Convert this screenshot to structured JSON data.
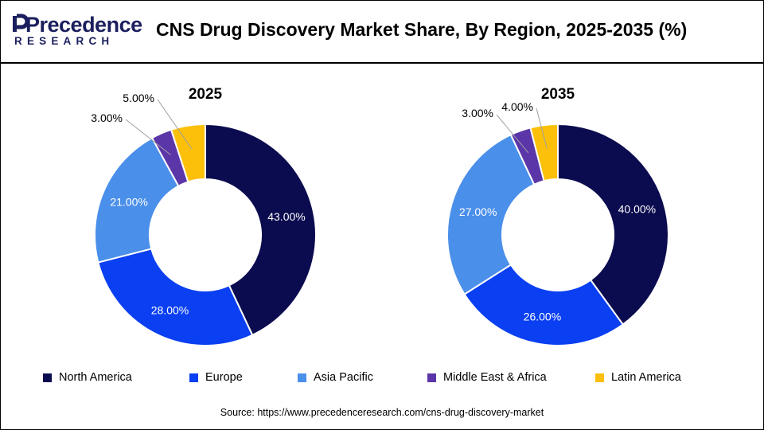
{
  "header": {
    "logo_main": "Precedence",
    "logo_sub": "RESEARCH",
    "title": "CNS Drug Discovery Market Share, By Region, 2025-2035 (%)"
  },
  "source": "Source: https://www.precedenceresearch.com/cns-drug-discovery-market",
  "colors": {
    "North America": "#0b0b4f",
    "Europe": "#0a3ff2",
    "Asia Pacific": "#4a8fea",
    "Middle East & Africa": "#5b36a8",
    "Latin America": "#fcc00b"
  },
  "chart_data": [
    {
      "type": "pie",
      "title": "2025",
      "categories": [
        "North America",
        "Europe",
        "Asia Pacific",
        "Middle East & Africa",
        "Latin America"
      ],
      "values": [
        43.0,
        28.0,
        21.0,
        3.0,
        5.0
      ],
      "labels": [
        "43.00%",
        "28.00%",
        "21.00%",
        "3.00%",
        "5.00%"
      ],
      "donut": true,
      "legend": "bottom"
    },
    {
      "type": "pie",
      "title": "2035",
      "categories": [
        "North America",
        "Europe",
        "Asia Pacific",
        "Middle East & Africa",
        "Latin America"
      ],
      "values": [
        40.0,
        26.0,
        27.0,
        3.0,
        4.0
      ],
      "labels": [
        "40.00%",
        "26.00%",
        "27.00%",
        "3.00%",
        "4.00%"
      ],
      "donut": true,
      "legend": "bottom"
    }
  ],
  "legend": [
    "North America",
    "Europe",
    "Asia Pacific",
    "Middle East & Africa",
    "Latin America"
  ]
}
